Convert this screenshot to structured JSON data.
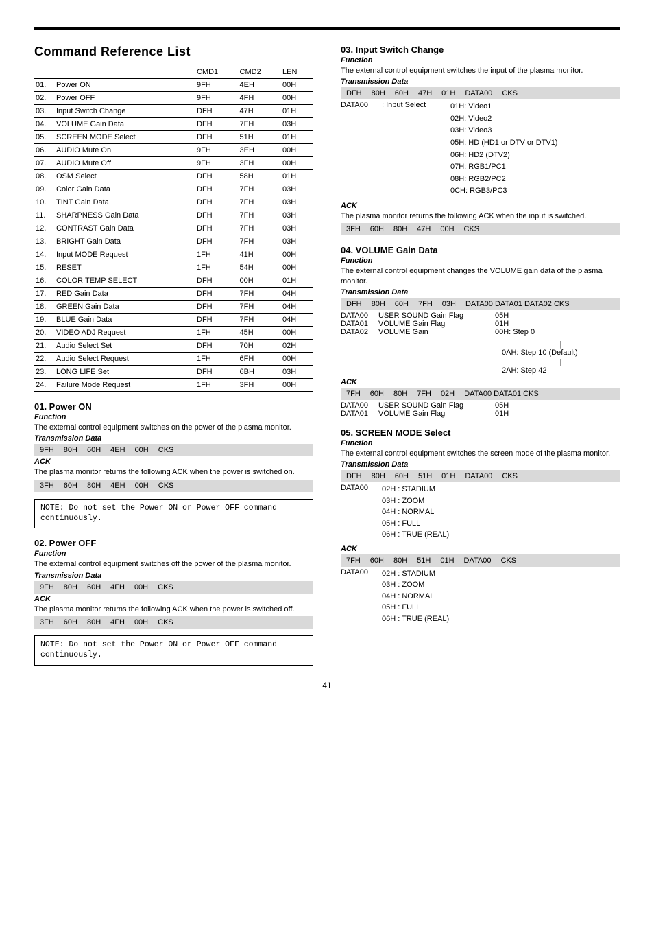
{
  "page_number": "41",
  "main_title": "Command Reference List",
  "ref_table": {
    "headers": [
      "",
      "",
      "CMD1",
      "CMD2",
      "LEN"
    ],
    "rows": [
      [
        "01.",
        "Power ON",
        "9FH",
        "4EH",
        "00H"
      ],
      [
        "02.",
        "Power OFF",
        "9FH",
        "4FH",
        "00H"
      ],
      [
        "03.",
        "Input Switch Change",
        "DFH",
        "47H",
        "01H"
      ],
      [
        "04.",
        "VOLUME Gain Data",
        "DFH",
        "7FH",
        "03H"
      ],
      [
        "05.",
        "SCREEN MODE Select",
        "DFH",
        "51H",
        "01H"
      ],
      [
        "06.",
        "AUDIO Mute On",
        "9FH",
        "3EH",
        "00H"
      ],
      [
        "07.",
        "AUDIO Mute Off",
        "9FH",
        "3FH",
        "00H"
      ],
      [
        "08.",
        "OSM Select",
        "DFH",
        "58H",
        "01H"
      ],
      [
        "09.",
        "Color Gain Data",
        "DFH",
        "7FH",
        "03H"
      ],
      [
        "10.",
        "TINT Gain Data",
        "DFH",
        "7FH",
        "03H"
      ],
      [
        "11.",
        "SHARPNESS Gain Data",
        "DFH",
        "7FH",
        "03H"
      ],
      [
        "12.",
        "CONTRAST Gain Data",
        "DFH",
        "7FH",
        "03H"
      ],
      [
        "13.",
        "BRIGHT Gain Data",
        "DFH",
        "7FH",
        "03H"
      ],
      [
        "14.",
        "Input MODE Request",
        "1FH",
        "41H",
        "00H"
      ],
      [
        "15.",
        "RESET",
        "1FH",
        "54H",
        "00H"
      ],
      [
        "16.",
        "COLOR TEMP SELECT",
        "DFH",
        "00H",
        "01H"
      ],
      [
        "17.",
        "RED Gain Data",
        "DFH",
        "7FH",
        "04H"
      ],
      [
        "18.",
        "GREEN Gain Data",
        "DFH",
        "7FH",
        "04H"
      ],
      [
        "19.",
        "BLUE Gain Data",
        "DFH",
        "7FH",
        "04H"
      ],
      [
        "20.",
        "VIDEO ADJ Request",
        "1FH",
        "45H",
        "00H"
      ],
      [
        "21.",
        "Audio Select Set",
        "DFH",
        "70H",
        "02H"
      ],
      [
        "22.",
        "Audio Select Request",
        "1FH",
        "6FH",
        "00H"
      ],
      [
        "23.",
        "LONG LIFE Set",
        "DFH",
        "6BH",
        "03H"
      ],
      [
        "24.",
        "Failure Mode Request",
        "1FH",
        "3FH",
        "00H"
      ]
    ]
  },
  "s01": {
    "title": "01. Power ON",
    "func_label": "Function",
    "func_text": "The external control equipment switches on the power of the plasma monitor.",
    "trans_label": "Transmission Data",
    "trans_hex": [
      "9FH",
      "80H",
      "60H",
      "4EH",
      "00H",
      "CKS"
    ],
    "ack_label": "ACK",
    "ack_text": "The plasma monitor returns the following ACK when the power is switched on.",
    "ack_hex": [
      "3FH",
      "60H",
      "80H",
      "4EH",
      "00H",
      "CKS"
    ],
    "note": "NOTE: Do not set the Power ON or Power OFF command continuously."
  },
  "s02": {
    "title": "02. Power OFF",
    "func_label": "Function",
    "func_text": "The external control equipment switches off the power of the plasma monitor.",
    "trans_label": "Transmission Data",
    "trans_hex": [
      "9FH",
      "80H",
      "60H",
      "4FH",
      "00H",
      "CKS"
    ],
    "ack_label": "ACK",
    "ack_text": "The plasma monitor returns the following ACK when the power is switched off.",
    "ack_hex": [
      "3FH",
      "60H",
      "80H",
      "4FH",
      "00H",
      "CKS"
    ],
    "note": "NOTE: Do not set the Power ON or Power OFF command continuously."
  },
  "s03": {
    "title": "03. Input Switch Change",
    "func_label": "Function",
    "func_text": "The external control equipment switches the input of the plasma monitor.",
    "trans_label": "Transmission Data",
    "trans_hex": [
      "DFH",
      "80H",
      "60H",
      "47H",
      "01H",
      "DATA00",
      "CKS"
    ],
    "data00_label": "DATA00",
    "data00_select": ": Input Select",
    "data00_vals": [
      "01H: Video1",
      "02H: Video2",
      "03H: Video3",
      "05H: HD (HD1 or DTV or DTV1)",
      "06H: HD2 (DTV2)",
      "07H: RGB1/PC1",
      "08H: RGB2/PC2",
      "0CH: RGB3/PC3"
    ],
    "ack_label": "ACK",
    "ack_text": "The plasma monitor returns the following ACK when the input is switched.",
    "ack_hex": [
      "3FH",
      "60H",
      "80H",
      "47H",
      "00H",
      "CKS"
    ]
  },
  "s04": {
    "title": "04. VOLUME Gain Data",
    "func_label": "Function",
    "func_text": "The external control equipment changes the VOLUME gain data of the plasma monitor.",
    "trans_label": "Transmission Data",
    "trans_hex": [
      "DFH",
      "80H",
      "60H",
      "7FH",
      "03H",
      "DATA00 DATA01 DATA02 CKS"
    ],
    "rows": [
      [
        "DATA00",
        "USER SOUND Gain Flag",
        "05H"
      ],
      [
        "DATA01",
        "VOLUME Gain Flag",
        "01H"
      ],
      [
        "DATA02",
        "VOLUME Gain",
        "00H: Step 0"
      ]
    ],
    "extra": [
      "0AH: Step 10 (Default)",
      "2AH: Step 42"
    ],
    "ack_label": "ACK",
    "ack_hex": [
      "7FH",
      "60H",
      "80H",
      "7FH",
      "02H",
      "DATA00 DATA01 CKS"
    ],
    "ack_rows": [
      [
        "DATA00",
        "USER SOUND Gain Flag",
        "05H"
      ],
      [
        "DATA01",
        "VOLUME Gain Flag",
        "01H"
      ]
    ]
  },
  "s05": {
    "title": "05. SCREEN MODE Select",
    "func_label": "Function",
    "func_text": "The external control equipment switches the screen mode of the plasma monitor.",
    "trans_label": "Transmission Data",
    "trans_hex": [
      "DFH",
      "80H",
      "60H",
      "51H",
      "01H",
      "DATA00",
      "CKS"
    ],
    "data00_label": "DATA00",
    "data00_vals": [
      "02H : STADIUM",
      "03H : ZOOM",
      "04H : NORMAL",
      "05H : FULL",
      "06H : TRUE (REAL)"
    ],
    "ack_label": "ACK",
    "ack_hex": [
      "7FH",
      "60H",
      "80H",
      "51H",
      "01H",
      "DATA00",
      "CKS"
    ],
    "ack_data00_label": "DATA00",
    "ack_data00_vals": [
      "02H : STADIUM",
      "03H : ZOOM",
      "04H : NORMAL",
      "05H : FULL",
      "06H : TRUE (REAL)"
    ]
  }
}
